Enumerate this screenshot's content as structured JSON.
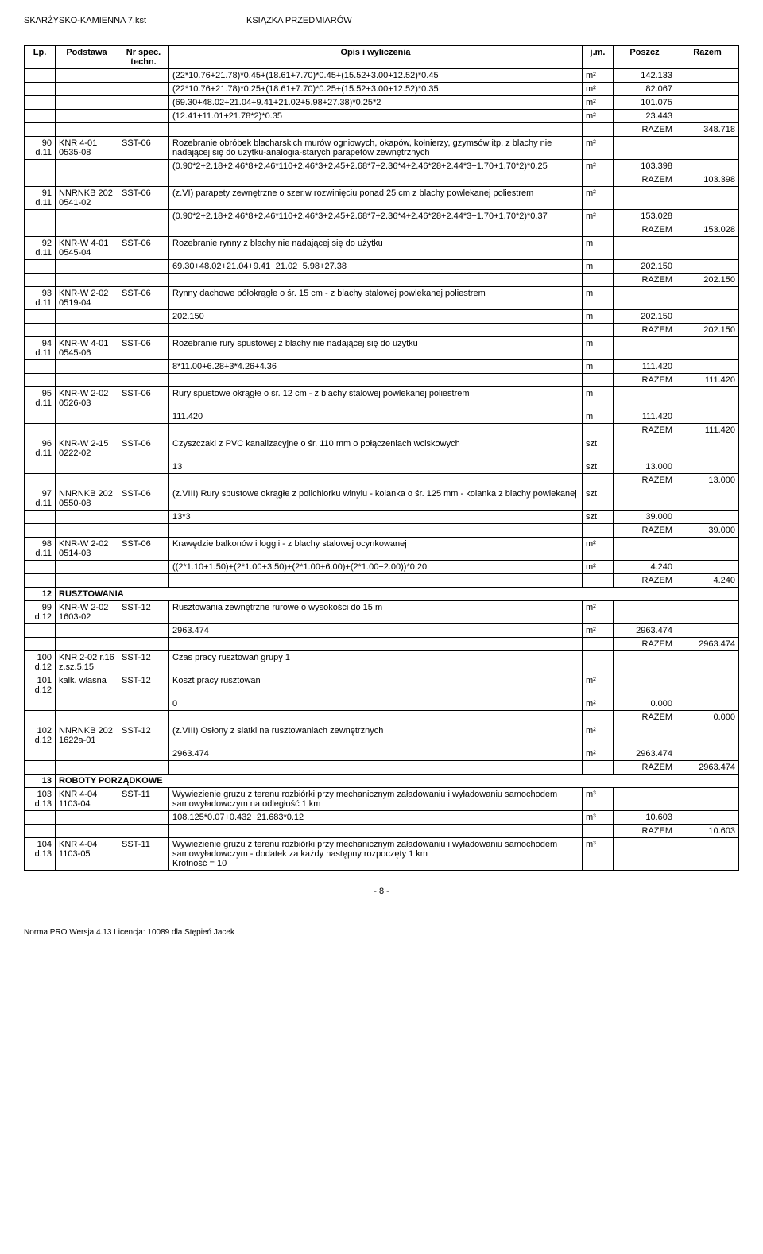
{
  "header": {
    "left": "SKARŻYSKO-KAMIENNA 7.kst",
    "center": "KSIĄŻKA PRZEDMIARÓW"
  },
  "columns": {
    "lp": "Lp.",
    "basis": "Podstawa",
    "spec": "Nr spec. techn.",
    "desc": "Opis i wyliczenia",
    "unit": "j.m.",
    "poszcz": "Poszcz",
    "razem": "Razem"
  },
  "razem_label": "RAZEM",
  "page_num": "- 8 -",
  "footer": "Norma PRO Wersja 4.13 Licencja: 10089 dla Stępień Jacek",
  "cont_rows": [
    {
      "calc": "(22*10.76+21.78)*0.45+(18.61+7.70)*0.45+(15.52+3.00+12.52)*0.45",
      "unit": "m²",
      "val": "142.133"
    },
    {
      "calc": "(22*10.76+21.78)*0.25+(18.61+7.70)*0.25+(15.52+3.00+12.52)*0.35",
      "unit": "m²",
      "val": "82.067"
    },
    {
      "calc": "(69.30+48.02+21.04+9.41+21.02+5.98+27.38)*0.25*2",
      "unit": "m²",
      "val": "101.075"
    },
    {
      "calc": "(12.41+11.01+21.78*2)*0.35",
      "unit": "m²",
      "val": "23.443"
    }
  ],
  "cont_razem": "348.718",
  "items": [
    {
      "lp": "90",
      "lpd": "d.11",
      "basis": "KNR 4-01 0535-08",
      "spec": "SST-06",
      "desc": "Rozebranie obróbek blacharskich murów ogniowych, okapów, kołnierzy, gzymsów itp. z blachy nie nadającej się do użytku-analogia-starych parapetów zewnętrznych",
      "unit": "m²",
      "calcs": [
        {
          "calc": "(0.90*2+2.18+2.46*8+2.46*110+2.46*3+2.45+2.68*7+2.36*4+2.46*28+2.44*3+1.70+1.70*2)*0.25",
          "unit": "m²",
          "val": "103.398"
        }
      ],
      "razem": "103.398"
    },
    {
      "lp": "91",
      "lpd": "d.11",
      "basis": "NNRNKB 202 0541-02",
      "spec": "SST-06",
      "desc": "(z.VI) parapety zewnętrzne o szer.w rozwinięciu ponad 25 cm z blachy powlekanej poliestrem",
      "unit": "m²",
      "calcs": [
        {
          "calc": "(0.90*2+2.18+2.46*8+2.46*110+2.46*3+2.45+2.68*7+2.36*4+2.46*28+2.44*3+1.70+1.70*2)*0.37",
          "unit": "m²",
          "val": "153.028"
        }
      ],
      "razem": "153.028"
    },
    {
      "lp": "92",
      "lpd": "d.11",
      "basis": "KNR-W 4-01 0545-04",
      "spec": "SST-06",
      "desc": "Rozebranie rynny z blachy nie nadającej się do użytku",
      "unit": "m",
      "calcs": [
        {
          "calc": "69.30+48.02+21.04+9.41+21.02+5.98+27.38",
          "unit": "m",
          "val": "202.150"
        }
      ],
      "razem": "202.150"
    },
    {
      "lp": "93",
      "lpd": "d.11",
      "basis": "KNR-W 2-02 0519-04",
      "spec": "SST-06",
      "desc": "Rynny dachowe półokrągłe o śr. 15 cm - z blachy stalowej powlekanej poliestrem",
      "unit": "m",
      "calcs": [
        {
          "calc": "202.150",
          "unit": "m",
          "val": "202.150"
        }
      ],
      "razem": "202.150"
    },
    {
      "lp": "94",
      "lpd": "d.11",
      "basis": "KNR-W 4-01 0545-06",
      "spec": "SST-06",
      "desc": "Rozebranie rury spustowej z blachy nie nadającej się do użytku",
      "unit": "m",
      "calcs": [
        {
          "calc": "8*11.00+6.28+3*4.26+4.36",
          "unit": "m",
          "val": "111.420"
        }
      ],
      "razem": "111.420"
    },
    {
      "lp": "95",
      "lpd": "d.11",
      "basis": "KNR-W 2-02 0526-03",
      "spec": "SST-06",
      "desc": "Rury spustowe okrągłe o śr. 12 cm - z blachy stalowej powlekanej poliestrem",
      "unit": "m",
      "calcs": [
        {
          "calc": "111.420",
          "unit": "m",
          "val": "111.420"
        }
      ],
      "razem": "111.420"
    },
    {
      "lp": "96",
      "lpd": "d.11",
      "basis": "KNR-W 2-15 0222-02",
      "spec": "SST-06",
      "desc": "Czyszczaki z PVC kanalizacyjne o śr. 110 mm o połączeniach wciskowych",
      "unit": "szt.",
      "calcs": [
        {
          "calc": "13",
          "unit": "szt.",
          "val": "13.000"
        }
      ],
      "razem": "13.000"
    },
    {
      "lp": "97",
      "lpd": "d.11",
      "basis": "NNRNKB 202 0550-08",
      "spec": "SST-06",
      "desc": "(z.VIII) Rury spustowe okrągłe z polichlorku winylu - kolanka o śr. 125 mm - kolanka z blachy powlekanej",
      "unit": "szt.",
      "calcs": [
        {
          "calc": "13*3",
          "unit": "szt.",
          "val": "39.000"
        }
      ],
      "razem": "39.000"
    },
    {
      "lp": "98",
      "lpd": "d.11",
      "basis": "KNR-W 2-02 0514-03",
      "spec": "SST-06",
      "desc": "Krawędzie balkonów i loggii - z blachy stalowej ocynkowanej",
      "unit": "m²",
      "calcs": [
        {
          "calc": "((2*1.10+1.50)+(2*1.00+3.50)+(2*1.00+6.00)+(2*1.00+2.00))*0.20",
          "unit": "m²",
          "val": "4.240"
        }
      ],
      "razem": "4.240"
    }
  ],
  "section12": {
    "num": "12",
    "title": "RUSZTOWANIA"
  },
  "items12": [
    {
      "lp": "99",
      "lpd": "d.12",
      "basis": "KNR-W 2-02 1603-02",
      "spec": "SST-12",
      "desc": "Rusztowania zewnętrzne rurowe o wysokości do 15 m",
      "unit": "m²",
      "calcs": [
        {
          "calc": "2963.474",
          "unit": "m²",
          "val": "2963.474"
        }
      ],
      "razem": "2963.474"
    },
    {
      "lp": "100",
      "lpd": "d.12",
      "basis": "KNR 2-02 r.16 z.sz.5.15",
      "spec": "SST-12",
      "desc": "Czas pracy rusztowań grupy 1",
      "unit": "",
      "calcs": [],
      "razem": null
    },
    {
      "lp": "101",
      "lpd": "d.12",
      "basis": "kalk. własna",
      "spec": "SST-12",
      "desc": "Koszt pracy rusztowań",
      "unit": "m²",
      "calcs": [
        {
          "calc": "0",
          "unit": "m²",
          "val": "0.000"
        }
      ],
      "razem": "0.000"
    },
    {
      "lp": "102",
      "lpd": "d.12",
      "basis": "NNRNKB 202 1622a-01",
      "spec": "SST-12",
      "desc": "(z.VIII) Osłony z siatki na rusztowaniach zewnętrznych",
      "unit": "m²",
      "calcs": [
        {
          "calc": "2963.474",
          "unit": "m²",
          "val": "2963.474"
        }
      ],
      "razem": "2963.474"
    }
  ],
  "section13": {
    "num": "13",
    "title": "ROBOTY PORZĄDKOWE"
  },
  "items13": [
    {
      "lp": "103",
      "lpd": "d.13",
      "basis": "KNR 4-04 1103-04",
      "spec": "SST-11",
      "desc": "Wywiezienie gruzu z terenu rozbiórki przy mechanicznym załadowaniu i wyładowaniu samochodem samowyładowczym na odległość 1 km",
      "unit": "m³",
      "calcs": [
        {
          "calc": "108.125*0.07+0.432+21.683*0.12",
          "unit": "m³",
          "val": "10.603"
        }
      ],
      "razem": "10.603"
    },
    {
      "lp": "104",
      "lpd": "d.13",
      "basis": "KNR 4-04 1103-05",
      "spec": "SST-11",
      "desc": "Wywiezienie gruzu z terenu rozbiórki przy mechanicznym załadowaniu i wyładowaniu samochodem samowyładowczym - dodatek za każdy następny rozpoczęty 1 km\nKrotność = 10",
      "unit": "m³",
      "calcs": [],
      "razem": null
    }
  ]
}
